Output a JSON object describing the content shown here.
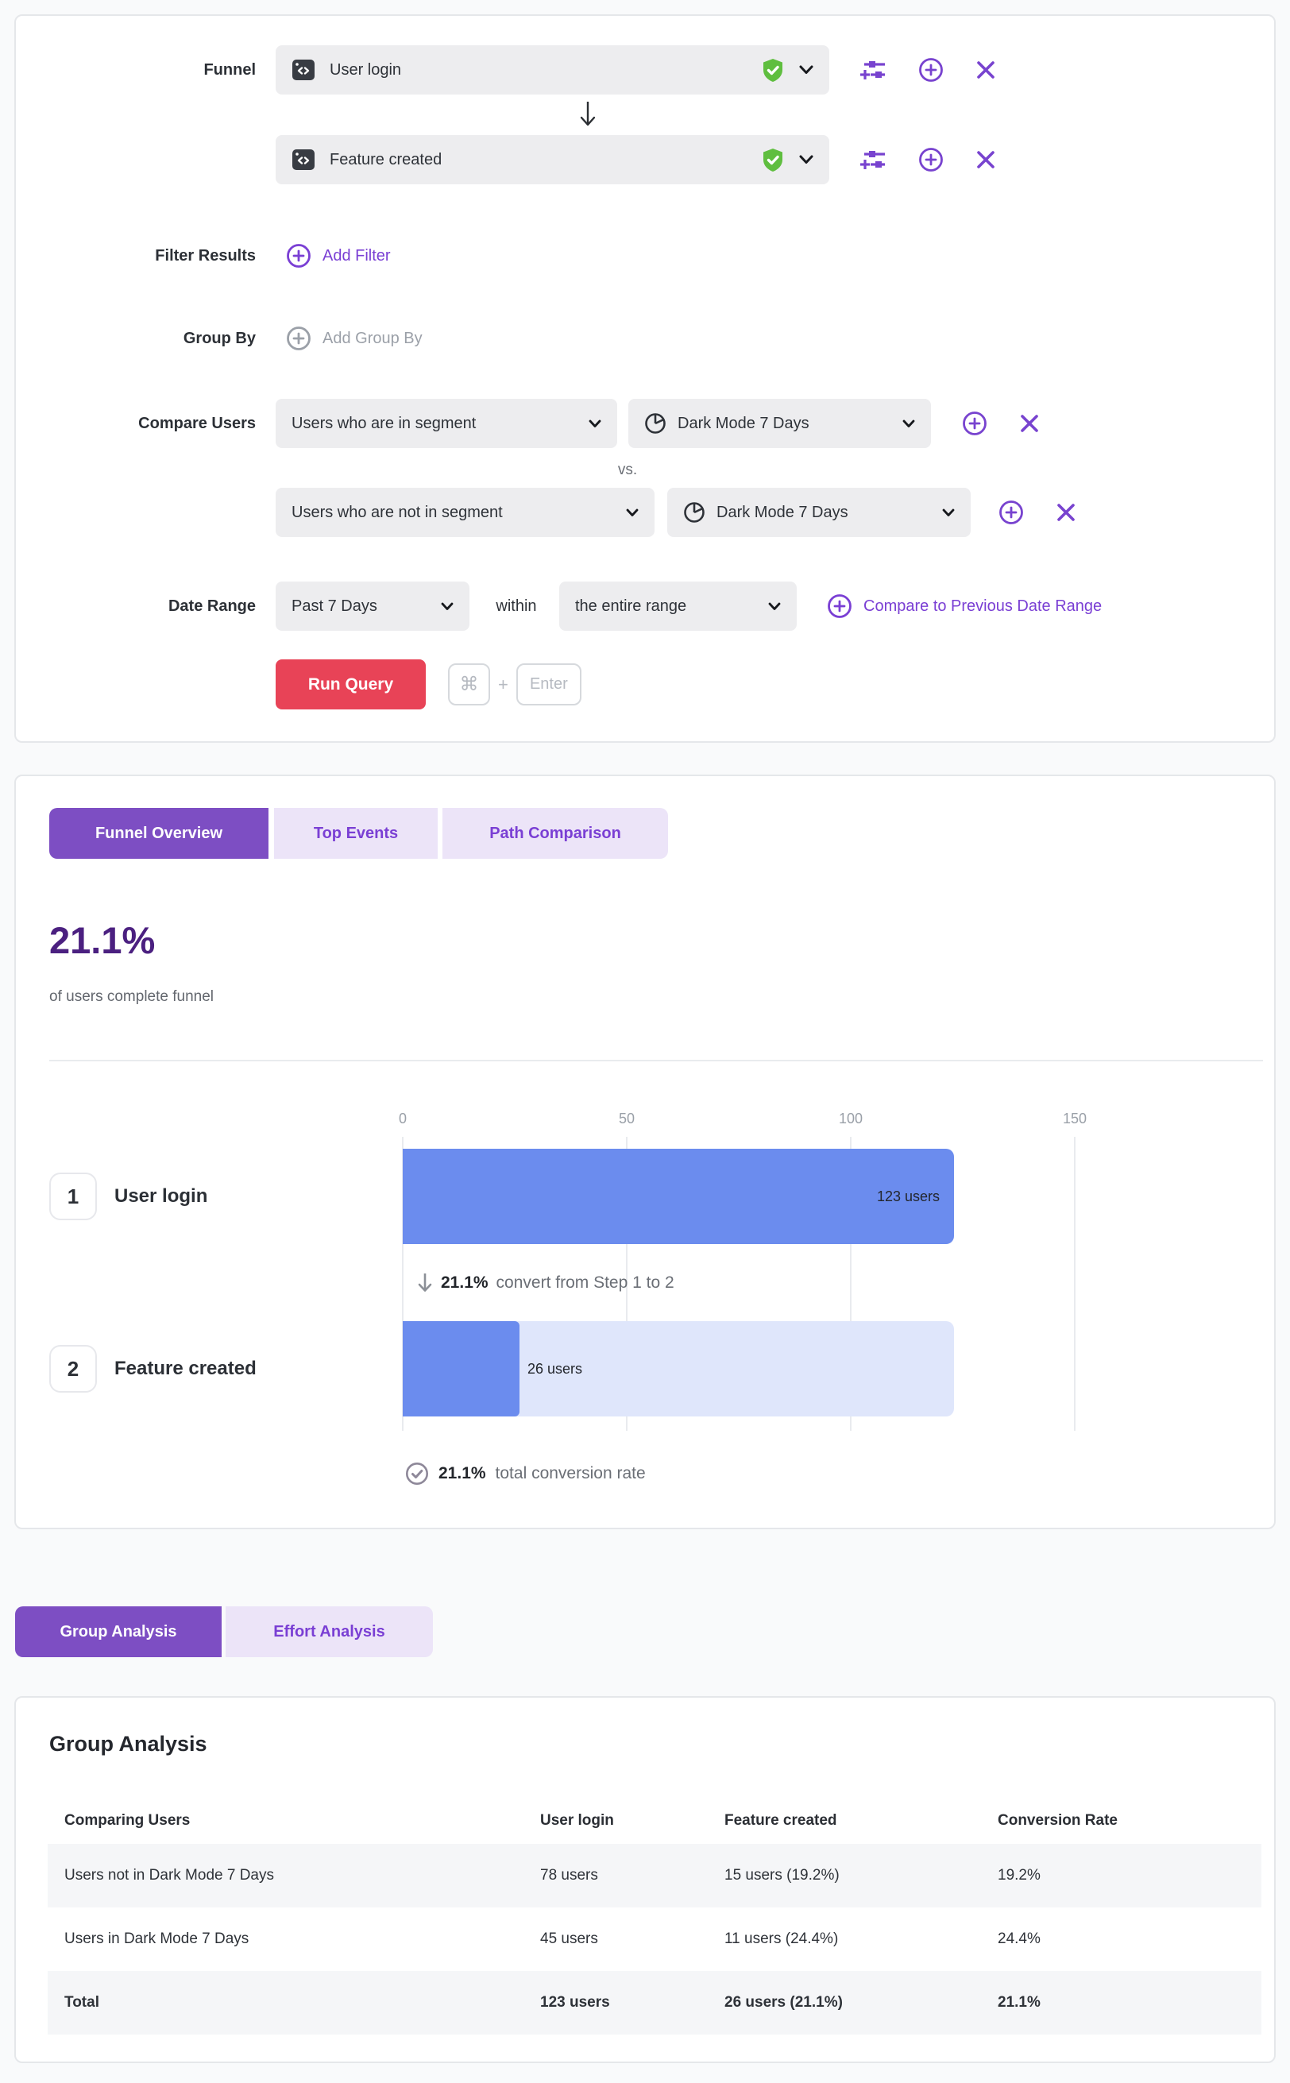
{
  "colors": {
    "accent_purple": "#7a3fd4",
    "tab_active_bg": "#7d4ec3",
    "tab_inactive_bg": "#ece4f8",
    "run_button_red": "#e84357",
    "verified_green": "#5fbe3f",
    "bar_blue": "#6b8cee",
    "bar_track_blue": "#dfe6fb",
    "headline_purple": "#4b2080"
  },
  "query_builder": {
    "funnel_label": "Funnel",
    "steps": [
      {
        "event": "User login"
      },
      {
        "event": "Feature created"
      }
    ],
    "filter_results": {
      "label": "Filter Results",
      "add_filter": "Add Filter"
    },
    "group_by": {
      "label": "Group By",
      "add_group_by": "Add Group By"
    },
    "compare_users": {
      "label": "Compare Users",
      "vs": "vs.",
      "rows": [
        {
          "membership": "Users who are in segment",
          "segment": "Dark Mode 7 Days"
        },
        {
          "membership": "Users who are not in segment",
          "segment": "Dark Mode 7 Days"
        }
      ]
    },
    "date_range": {
      "label": "Date Range",
      "range": "Past 7 Days",
      "within": "within",
      "scope": "the entire range",
      "compare_link": "Compare to Previous Date Range"
    },
    "run": {
      "button": "Run Query",
      "key_cmd": "⌘",
      "key_plus": "+",
      "key_enter": "Enter"
    }
  },
  "results": {
    "tabs": [
      {
        "label": "Funnel Overview"
      },
      {
        "label": "Top Events"
      },
      {
        "label": "Path Comparison"
      }
    ],
    "headline": {
      "value": "21.1%",
      "caption": "of users complete funnel"
    },
    "chart_data": {
      "type": "bar",
      "orientation": "horizontal",
      "categories": [
        "User login",
        "Feature created"
      ],
      "values": [
        123,
        26
      ],
      "value_labels": [
        "123 users",
        "26 users"
      ],
      "step_numbers": [
        "1",
        "2"
      ],
      "x_ticks": [
        "0",
        "50",
        "100",
        "150"
      ],
      "xlim": [
        0,
        150
      ],
      "grid": true,
      "annotations": {
        "step_conversion_value": "21.1%",
        "step_conversion_text": "convert from Step 1 to 2",
        "total_conversion_value": "21.1%",
        "total_conversion_text": "total conversion rate"
      }
    }
  },
  "analysis": {
    "tabs": [
      {
        "label": "Group Analysis"
      },
      {
        "label": "Effort Analysis"
      }
    ],
    "title": "Group Analysis",
    "table": {
      "columns": [
        "Comparing Users",
        "User login",
        "Feature created",
        "Conversion Rate"
      ],
      "rows": [
        {
          "group": "Users not in Dark Mode 7 Days",
          "user_login": "78 users",
          "feature_created": "15 users (19.2%)",
          "conversion_rate": "19.2%"
        },
        {
          "group": "Users in Dark Mode 7 Days",
          "user_login": "45 users",
          "feature_created": "11 users (24.4%)",
          "conversion_rate": "24.4%"
        },
        {
          "group": "Total",
          "user_login": "123 users",
          "feature_created": "26 users (21.1%)",
          "conversion_rate": "21.1%"
        }
      ]
    }
  }
}
